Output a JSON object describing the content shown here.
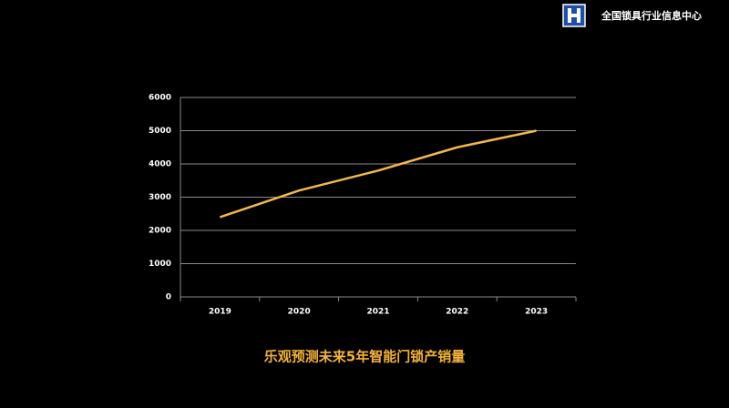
{
  "header": {
    "brand": "全国锁具行业信息中心"
  },
  "chart_data": {
    "type": "line",
    "title": "乐观预测未来5年智能门锁产销量",
    "categories": [
      "2019",
      "2020",
      "2021",
      "2022",
      "2023"
    ],
    "series": [
      {
        "color": "#f2b84b",
        "values": [
          2400,
          3200,
          3800,
          4500,
          5000
        ]
      }
    ],
    "ylim": [
      0,
      6000
    ],
    "yticks": [
      0,
      1000,
      2000,
      3000,
      4000,
      5000,
      6000
    ],
    "grid": true
  }
}
